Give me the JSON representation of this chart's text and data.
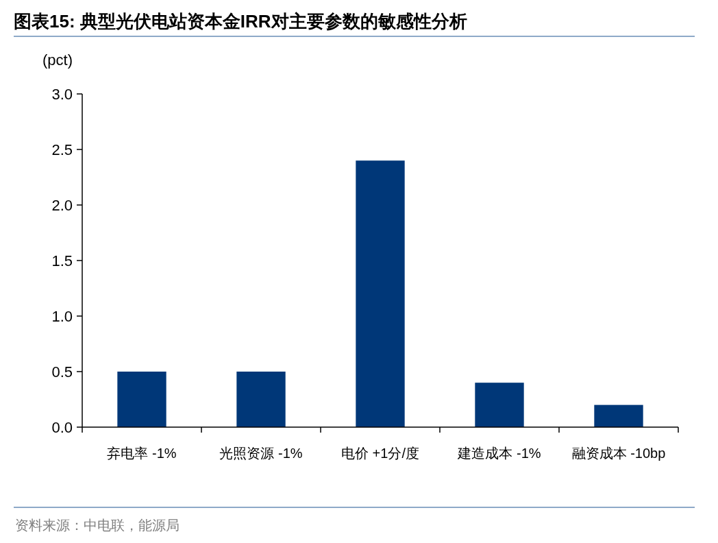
{
  "chart_data": {
    "type": "bar",
    "title": "图表15:  典型光伏电站资本金IRR对主要参数的敏感性分析",
    "ylabel": "(pct)",
    "annotations": [
      "资料来源：中电联，能源局"
    ],
    "categories": [
      "弃电率 -1%",
      "光照资源 -1%",
      "电价 +1分/度",
      "建造成本 -1%",
      "融资成本 -10bp"
    ],
    "values": [
      0.5,
      0.5,
      2.4,
      0.4,
      0.2
    ],
    "color": "#003778",
    "ylim": [
      0,
      3
    ],
    "yticks": [
      {
        "value": 0,
        "label": "0.0"
      },
      {
        "value": 0.5,
        "label": "0.5"
      },
      {
        "value": 1,
        "label": "1.0"
      },
      {
        "value": 1.5,
        "label": "1.5"
      },
      {
        "value": 2,
        "label": "2.0"
      },
      {
        "value": 2.5,
        "label": "2.5"
      },
      {
        "value": 3,
        "label": "3.0"
      }
    ]
  }
}
